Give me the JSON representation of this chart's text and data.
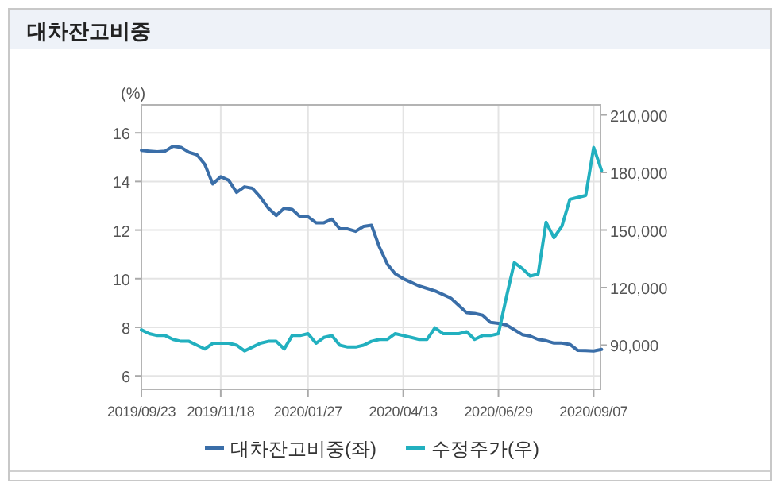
{
  "chart_data": {
    "type": "line",
    "title": "대차잔고비중",
    "ylabel": "(%)",
    "categories": [
      "2019/09/23",
      null,
      null,
      null,
      null,
      null,
      null,
      null,
      null,
      null,
      "2019/11/18",
      null,
      null,
      null,
      null,
      null,
      null,
      null,
      null,
      null,
      null,
      "2020/01/27",
      null,
      null,
      null,
      null,
      null,
      null,
      null,
      null,
      null,
      null,
      null,
      "2020/04/13",
      null,
      null,
      null,
      null,
      null,
      null,
      null,
      null,
      null,
      null,
      null,
      "2020/06/29",
      null,
      null,
      null,
      null,
      null,
      null,
      null,
      null,
      null,
      null,
      null,
      "2020/09/07",
      null
    ],
    "series": [
      {
        "name": "대차잔고비중(좌)",
        "color": "#3a6ea8",
        "values": [
          15.28,
          15.25,
          15.22,
          15.25,
          15.45,
          15.4,
          15.2,
          15.1,
          14.7,
          13.9,
          14.2,
          14.05,
          13.55,
          13.78,
          13.72,
          13.35,
          12.9,
          12.6,
          12.9,
          12.85,
          12.55,
          12.55,
          12.3,
          12.3,
          12.45,
          12.05,
          12.05,
          11.95,
          12.15,
          12.2,
          11.3,
          10.6,
          10.2,
          10.0,
          9.85,
          9.7,
          9.6,
          9.5,
          9.35,
          9.2,
          8.9,
          8.6,
          8.57,
          8.5,
          8.2,
          8.16,
          8.1,
          7.9,
          7.7,
          7.64,
          7.5,
          7.45,
          7.35,
          7.35,
          7.3,
          7.05,
          7.04,
          7.03,
          7.09
        ]
      },
      {
        "name": "수정주가(우)",
        "color": "#22b0bf",
        "axis": "y2",
        "values": [
          98000,
          96000,
          95000,
          95000,
          93000,
          92000,
          92000,
          90000,
          88000,
          91000,
          91000,
          91000,
          90000,
          87000,
          89000,
          91000,
          92000,
          92000,
          88000,
          95000,
          95000,
          96000,
          91000,
          94000,
          95000,
          90000,
          89000,
          89000,
          90000,
          92000,
          93000,
          93000,
          96000,
          95000,
          94000,
          93000,
          93000,
          99000,
          96000,
          96000,
          96000,
          97000,
          93000,
          95000,
          95000,
          96000,
          115000,
          133000,
          130000,
          126000,
          127000,
          154000,
          146000,
          152000,
          166000,
          167000,
          168000,
          193000,
          181000
        ]
      }
    ],
    "ylim": [
      5.45,
      17.15
    ],
    "yticks": [
      6,
      8,
      10,
      12,
      14,
      16
    ],
    "y2lim": [
      67000,
      215200
    ],
    "y2ticks": [
      {
        "value": 90000,
        "label": "90,000"
      },
      {
        "value": 120000,
        "label": "120,000"
      },
      {
        "value": 150000,
        "label": "150,000"
      },
      {
        "value": 180000,
        "label": "180,000"
      },
      {
        "value": 210000,
        "label": "210,000"
      }
    ],
    "grid": true,
    "legend": "bottom",
    "marker": "none",
    "line_style": "solid"
  }
}
